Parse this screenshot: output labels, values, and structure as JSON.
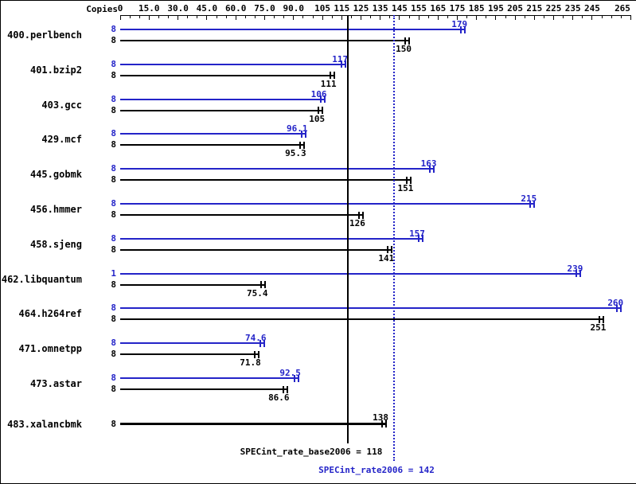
{
  "chart_data": {
    "type": "bar",
    "orientation": "horizontal",
    "axis_position": "top",
    "grid": false,
    "title": "",
    "copies_header": "Copies",
    "xlim": [
      0,
      265
    ],
    "axis_ticks": [
      0,
      15,
      30,
      45,
      60,
      75,
      90,
      105,
      115,
      125,
      135,
      145,
      155,
      165,
      175,
      185,
      195,
      205,
      215,
      225,
      235,
      245,
      265
    ],
    "axis_tick_labels": [
      "0",
      "15.0",
      "30.0",
      "45.0",
      "60.0",
      "75.0",
      "90.0",
      "105",
      "115",
      "125",
      "135",
      "145",
      "155",
      "165",
      "175",
      "185",
      "195",
      "205",
      "215",
      "225",
      "235",
      "245",
      "265"
    ],
    "colors": {
      "peak": "#2424c8",
      "base": "#000000"
    },
    "benchmarks": [
      {
        "name": "400.perlbench",
        "peak": {
          "copies": "8",
          "value": 179,
          "label": "179"
        },
        "base": {
          "copies": "8",
          "value": 150,
          "label": "150"
        }
      },
      {
        "name": "401.bzip2",
        "peak": {
          "copies": "8",
          "value": 117,
          "label": "117"
        },
        "base": {
          "copies": "8",
          "value": 111,
          "label": "111"
        }
      },
      {
        "name": "403.gcc",
        "peak": {
          "copies": "8",
          "value": 106,
          "label": "106"
        },
        "base": {
          "copies": "8",
          "value": 105,
          "label": "105"
        }
      },
      {
        "name": "429.mcf",
        "peak": {
          "copies": "8",
          "value": 96.1,
          "label": "96.1"
        },
        "base": {
          "copies": "8",
          "value": 95.3,
          "label": "95.3"
        }
      },
      {
        "name": "445.gobmk",
        "peak": {
          "copies": "8",
          "value": 163,
          "label": "163"
        },
        "base": {
          "copies": "8",
          "value": 151,
          "label": "151"
        }
      },
      {
        "name": "456.hmmer",
        "peak": {
          "copies": "8",
          "value": 215,
          "label": "215"
        },
        "base": {
          "copies": "8",
          "value": 126,
          "label": "126"
        }
      },
      {
        "name": "458.sjeng",
        "peak": {
          "copies": "8",
          "value": 157,
          "label": "157"
        },
        "base": {
          "copies": "8",
          "value": 141,
          "label": "141"
        }
      },
      {
        "name": "462.libquantum",
        "peak": {
          "copies": "1",
          "value": 239,
          "label": "239"
        },
        "base": {
          "copies": "8",
          "value": 75.4,
          "label": "75.4"
        }
      },
      {
        "name": "464.h264ref",
        "peak": {
          "copies": "8",
          "value": 260,
          "label": "260"
        },
        "base": {
          "copies": "8",
          "value": 251,
          "label": "251"
        }
      },
      {
        "name": "471.omnetpp",
        "peak": {
          "copies": "8",
          "value": 74.6,
          "label": "74.6"
        },
        "base": {
          "copies": "8",
          "value": 71.8,
          "label": "71.8"
        }
      },
      {
        "name": "473.astar",
        "peak": {
          "copies": "8",
          "value": 92.5,
          "label": "92.5"
        },
        "base": {
          "copies": "8",
          "value": 86.6,
          "label": "86.6"
        }
      },
      {
        "name": "483.xalancbmk",
        "peak": null,
        "base": {
          "copies": "8",
          "value": 138,
          "label": "138",
          "bold": true,
          "label_above": true
        }
      }
    ],
    "reference_lines": [
      {
        "name": "SPECint_rate_base2006",
        "value": 118,
        "label": "SPECint_rate_base2006 = 118",
        "style": "solid",
        "color": "#000000"
      },
      {
        "name": "SPECint_rate2006",
        "value": 142,
        "label": "SPECint_rate2006 = 142",
        "style": "dotted",
        "color": "#2424c8"
      }
    ]
  }
}
